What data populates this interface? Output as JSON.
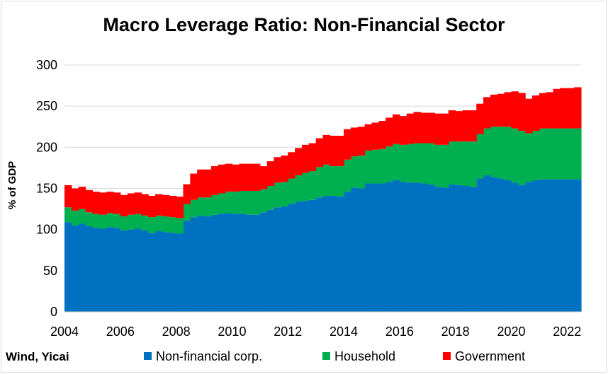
{
  "chart_data": {
    "type": "area",
    "stacked": true,
    "title": "Macro Leverage Ratio: Non-Financial Sector",
    "ylabel": "% of GDP",
    "xlabel": "",
    "source": "Wind, Yicai",
    "ylim": [
      0,
      300
    ],
    "xlim": [
      2004,
      2022.5
    ],
    "y_ticks": [
      "0",
      "50",
      "100",
      "150",
      "200",
      "250",
      "300"
    ],
    "x_ticks": [
      "2004",
      "2006",
      "2008",
      "2010",
      "2012",
      "2014",
      "2016",
      "2018",
      "2020",
      "2022"
    ],
    "grid": true,
    "legend_position": "bottom",
    "x": [
      2004.0,
      2004.25,
      2004.5,
      2004.75,
      2005.0,
      2005.25,
      2005.5,
      2005.75,
      2006.0,
      2006.25,
      2006.5,
      2006.75,
      2007.0,
      2007.25,
      2007.5,
      2007.75,
      2008.0,
      2008.25,
      2008.5,
      2008.75,
      2009.0,
      2009.25,
      2009.5,
      2009.75,
      2010.0,
      2010.25,
      2010.5,
      2010.75,
      2011.0,
      2011.25,
      2011.5,
      2011.75,
      2012.0,
      2012.25,
      2012.5,
      2012.75,
      2013.0,
      2013.25,
      2013.5,
      2013.75,
      2014.0,
      2014.25,
      2014.5,
      2014.75,
      2015.0,
      2015.25,
      2015.5,
      2015.75,
      2016.0,
      2016.25,
      2016.5,
      2016.75,
      2017.0,
      2017.25,
      2017.5,
      2017.75,
      2018.0,
      2018.25,
      2018.5,
      2018.75,
      2019.0,
      2019.25,
      2019.5,
      2019.75,
      2020.0,
      2020.25,
      2020.5,
      2020.75,
      2021.0,
      2021.25,
      2021.5,
      2021.75,
      2022.0,
      2022.25
    ],
    "series": [
      {
        "name": "Non-financial corp.",
        "color": "#0070c0",
        "values": [
          109,
          105,
          107,
          104,
          102,
          101,
          103,
          102,
          99,
          100,
          101,
          99,
          96,
          98,
          97,
          96,
          95,
          111,
          115,
          117,
          116,
          118,
          119,
          120,
          119,
          119,
          118,
          118,
          121,
          124,
          127,
          128,
          131,
          134,
          135,
          136,
          139,
          141,
          141,
          140,
          146,
          151,
          150,
          156,
          156,
          156,
          158,
          160,
          158,
          157,
          157,
          156,
          155,
          152,
          151,
          155,
          154,
          153,
          152,
          162,
          166,
          164,
          162,
          160,
          157,
          154,
          158,
          160,
          161,
          161,
          161,
          161,
          161,
          161
        ]
      },
      {
        "name": "Household",
        "color": "#00b050",
        "values": [
          18,
          18,
          18,
          17,
          17,
          17,
          17,
          17,
          17,
          18,
          18,
          18,
          19,
          19,
          19,
          19,
          19,
          20,
          21,
          22,
          23,
          24,
          25,
          26,
          27,
          28,
          29,
          29,
          28,
          29,
          30,
          30,
          31,
          32,
          34,
          35,
          37,
          38,
          36,
          37,
          39,
          38,
          40,
          40,
          41,
          42,
          43,
          44,
          45,
          47,
          48,
          49,
          50,
          51,
          52,
          52,
          53,
          54,
          55,
          54,
          57,
          61,
          63,
          65,
          66,
          66,
          59,
          60,
          62,
          62,
          62,
          62,
          62,
          62
        ]
      },
      {
        "name": "Government",
        "color": "#ff0000",
        "values": [
          27,
          27,
          27,
          27,
          27,
          27,
          26,
          26,
          26,
          26,
          26,
          26,
          26,
          26,
          26,
          26,
          26,
          24,
          32,
          34,
          34,
          35,
          35,
          34,
          33,
          33,
          33,
          33,
          28,
          30,
          31,
          32,
          32,
          33,
          34,
          34,
          35,
          36,
          37,
          37,
          37,
          35,
          35,
          32,
          33,
          34,
          35,
          36,
          35,
          37,
          38,
          37,
          37,
          38,
          38,
          38,
          37,
          38,
          38,
          37,
          38,
          39,
          40,
          42,
          45,
          46,
          42,
          43,
          43,
          44,
          48,
          49,
          49,
          50
        ]
      }
    ]
  }
}
